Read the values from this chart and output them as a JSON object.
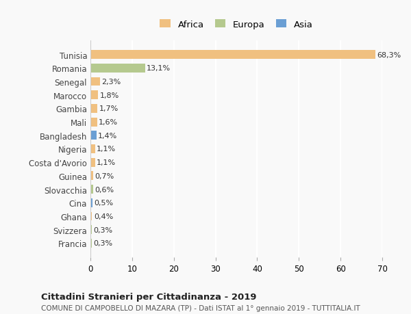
{
  "countries": [
    "Tunisia",
    "Romania",
    "Senegal",
    "Marocco",
    "Gambia",
    "Mali",
    "Bangladesh",
    "Nigeria",
    "Costa d'Avorio",
    "Guinea",
    "Slovacchia",
    "Cina",
    "Ghana",
    "Svizzera",
    "Francia"
  ],
  "values": [
    68.3,
    13.1,
    2.3,
    1.8,
    1.7,
    1.6,
    1.4,
    1.1,
    1.1,
    0.7,
    0.6,
    0.5,
    0.4,
    0.3,
    0.3
  ],
  "labels": [
    "68,3%",
    "13,1%",
    "2,3%",
    "1,8%",
    "1,7%",
    "1,6%",
    "1,4%",
    "1,1%",
    "1,1%",
    "0,7%",
    "0,6%",
    "0,5%",
    "0,4%",
    "0,3%",
    "0,3%"
  ],
  "continents": [
    "Africa",
    "Europa",
    "Africa",
    "Africa",
    "Africa",
    "Africa",
    "Asia",
    "Africa",
    "Africa",
    "Africa",
    "Europa",
    "Asia",
    "Africa",
    "Europa",
    "Europa"
  ],
  "colors": {
    "Africa": "#F0C080",
    "Europa": "#B5C98E",
    "Asia": "#6B9FD4"
  },
  "xlim": [
    0,
    70
  ],
  "xticks": [
    0,
    10,
    20,
    30,
    40,
    50,
    60,
    70
  ],
  "title": "Cittadini Stranieri per Cittadinanza - 2019",
  "subtitle": "COMUNE DI CAMPOBELLO DI MAZARA (TP) - Dati ISTAT al 1° gennaio 2019 - TUTTITALIA.IT",
  "bg_color": "#f9f9f9",
  "grid_color": "#ffffff",
  "bar_height": 0.65
}
